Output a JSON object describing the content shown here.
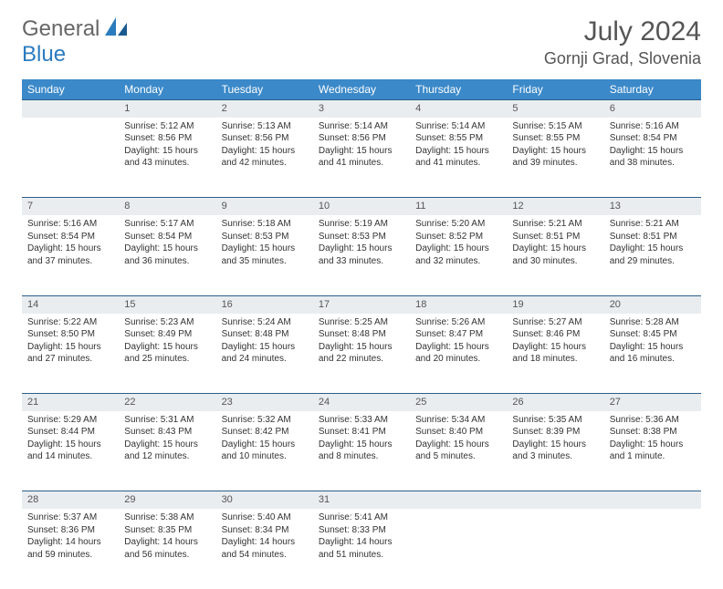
{
  "logo": {
    "general": "General",
    "blue": "Blue"
  },
  "title": "July 2024",
  "location": "Gornji Grad, Slovenia",
  "colors": {
    "header_bg": "#3b89c9",
    "daynum_bg": "#e9edf0",
    "rule": "#2b5f8a",
    "logo_gray": "#666666",
    "logo_blue": "#2b7bbf",
    "text": "#333333"
  },
  "weekdays": [
    "Sunday",
    "Monday",
    "Tuesday",
    "Wednesday",
    "Thursday",
    "Friday",
    "Saturday"
  ],
  "weeks": [
    {
      "nums": [
        "",
        "1",
        "2",
        "3",
        "4",
        "5",
        "6"
      ],
      "cells": [
        null,
        {
          "sunrise": "5:12 AM",
          "sunset": "8:56 PM",
          "daylight": "15 hours and 43 minutes."
        },
        {
          "sunrise": "5:13 AM",
          "sunset": "8:56 PM",
          "daylight": "15 hours and 42 minutes."
        },
        {
          "sunrise": "5:14 AM",
          "sunset": "8:56 PM",
          "daylight": "15 hours and 41 minutes."
        },
        {
          "sunrise": "5:14 AM",
          "sunset": "8:55 PM",
          "daylight": "15 hours and 41 minutes."
        },
        {
          "sunrise": "5:15 AM",
          "sunset": "8:55 PM",
          "daylight": "15 hours and 39 minutes."
        },
        {
          "sunrise": "5:16 AM",
          "sunset": "8:54 PM",
          "daylight": "15 hours and 38 minutes."
        }
      ]
    },
    {
      "nums": [
        "7",
        "8",
        "9",
        "10",
        "11",
        "12",
        "13"
      ],
      "cells": [
        {
          "sunrise": "5:16 AM",
          "sunset": "8:54 PM",
          "daylight": "15 hours and 37 minutes."
        },
        {
          "sunrise": "5:17 AM",
          "sunset": "8:54 PM",
          "daylight": "15 hours and 36 minutes."
        },
        {
          "sunrise": "5:18 AM",
          "sunset": "8:53 PM",
          "daylight": "15 hours and 35 minutes."
        },
        {
          "sunrise": "5:19 AM",
          "sunset": "8:53 PM",
          "daylight": "15 hours and 33 minutes."
        },
        {
          "sunrise": "5:20 AM",
          "sunset": "8:52 PM",
          "daylight": "15 hours and 32 minutes."
        },
        {
          "sunrise": "5:21 AM",
          "sunset": "8:51 PM",
          "daylight": "15 hours and 30 minutes."
        },
        {
          "sunrise": "5:21 AM",
          "sunset": "8:51 PM",
          "daylight": "15 hours and 29 minutes."
        }
      ]
    },
    {
      "nums": [
        "14",
        "15",
        "16",
        "17",
        "18",
        "19",
        "20"
      ],
      "cells": [
        {
          "sunrise": "5:22 AM",
          "sunset": "8:50 PM",
          "daylight": "15 hours and 27 minutes."
        },
        {
          "sunrise": "5:23 AM",
          "sunset": "8:49 PM",
          "daylight": "15 hours and 25 minutes."
        },
        {
          "sunrise": "5:24 AM",
          "sunset": "8:48 PM",
          "daylight": "15 hours and 24 minutes."
        },
        {
          "sunrise": "5:25 AM",
          "sunset": "8:48 PM",
          "daylight": "15 hours and 22 minutes."
        },
        {
          "sunrise": "5:26 AM",
          "sunset": "8:47 PM",
          "daylight": "15 hours and 20 minutes."
        },
        {
          "sunrise": "5:27 AM",
          "sunset": "8:46 PM",
          "daylight": "15 hours and 18 minutes."
        },
        {
          "sunrise": "5:28 AM",
          "sunset": "8:45 PM",
          "daylight": "15 hours and 16 minutes."
        }
      ]
    },
    {
      "nums": [
        "21",
        "22",
        "23",
        "24",
        "25",
        "26",
        "27"
      ],
      "cells": [
        {
          "sunrise": "5:29 AM",
          "sunset": "8:44 PM",
          "daylight": "15 hours and 14 minutes."
        },
        {
          "sunrise": "5:31 AM",
          "sunset": "8:43 PM",
          "daylight": "15 hours and 12 minutes."
        },
        {
          "sunrise": "5:32 AM",
          "sunset": "8:42 PM",
          "daylight": "15 hours and 10 minutes."
        },
        {
          "sunrise": "5:33 AM",
          "sunset": "8:41 PM",
          "daylight": "15 hours and 8 minutes."
        },
        {
          "sunrise": "5:34 AM",
          "sunset": "8:40 PM",
          "daylight": "15 hours and 5 minutes."
        },
        {
          "sunrise": "5:35 AM",
          "sunset": "8:39 PM",
          "daylight": "15 hours and 3 minutes."
        },
        {
          "sunrise": "5:36 AM",
          "sunset": "8:38 PM",
          "daylight": "15 hours and 1 minute."
        }
      ]
    },
    {
      "nums": [
        "28",
        "29",
        "30",
        "31",
        "",
        "",
        ""
      ],
      "cells": [
        {
          "sunrise": "5:37 AM",
          "sunset": "8:36 PM",
          "daylight": "14 hours and 59 minutes."
        },
        {
          "sunrise": "5:38 AM",
          "sunset": "8:35 PM",
          "daylight": "14 hours and 56 minutes."
        },
        {
          "sunrise": "5:40 AM",
          "sunset": "8:34 PM",
          "daylight": "14 hours and 54 minutes."
        },
        {
          "sunrise": "5:41 AM",
          "sunset": "8:33 PM",
          "daylight": "14 hours and 51 minutes."
        },
        null,
        null,
        null
      ]
    }
  ],
  "labels": {
    "sunrise": "Sunrise: ",
    "sunset": "Sunset: ",
    "daylight": "Daylight: "
  }
}
